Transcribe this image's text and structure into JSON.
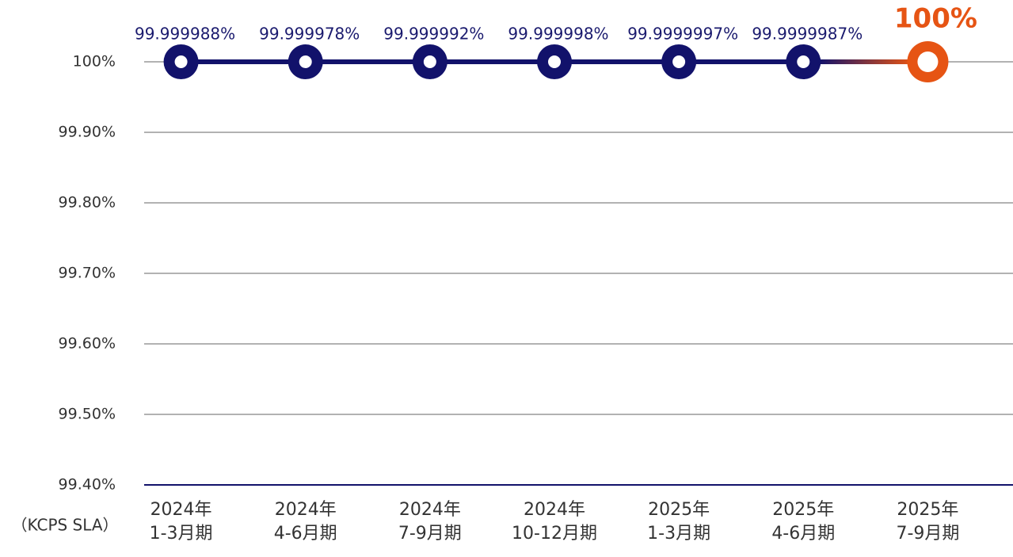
{
  "chart_data": {
    "type": "line",
    "y_label": "（KCPS SLA）",
    "categories": [
      [
        "2024年",
        "1-3月期"
      ],
      [
        "2024年",
        "4-6月期"
      ],
      [
        "2024年",
        "7-9月期"
      ],
      [
        "2024年",
        "10-12月期"
      ],
      [
        "2025年",
        "1-3月期"
      ],
      [
        "2025年",
        "4-6月期"
      ],
      [
        "2025年",
        "7-9月期"
      ]
    ],
    "values": [
      99.999988,
      99.999978,
      99.999992,
      99.999998,
      99.9999997,
      99.9999987,
      100
    ],
    "value_labels": [
      "99.999988%",
      "99.999978%",
      "99.999992%",
      "99.999998%",
      "99.9999997%",
      "99.9999987%",
      "100%"
    ],
    "color": "#12126b",
    "highlight_color": "#e65414",
    "ylim": [
      99.4,
      100
    ],
    "yticks": [
      {
        "value": 99.4,
        "label": "99.40%"
      },
      {
        "value": 99.5,
        "label": "99.50%"
      },
      {
        "value": 99.6,
        "label": "99.60%"
      },
      {
        "value": 99.7,
        "label": "99.70%"
      },
      {
        "value": 99.8,
        "label": "99.80%"
      },
      {
        "value": 99.9,
        "label": "99.90%"
      },
      {
        "value": 100,
        "label": "100%"
      }
    ],
    "grid": true
  }
}
